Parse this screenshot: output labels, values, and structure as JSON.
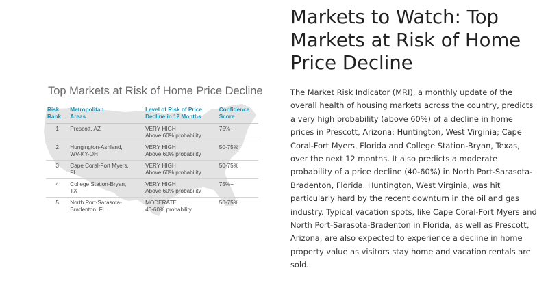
{
  "figure": {
    "title": "Top Markets at Risk of Home Price Decline",
    "headers": {
      "rank": [
        "Risk",
        "Rank"
      ],
      "metro": [
        "Metropolitan",
        "Areas"
      ],
      "level": [
        "Level of Risk of Price",
        "Decline in 12 Months"
      ],
      "confidence": [
        "Confidence",
        "Score"
      ]
    },
    "rows": [
      {
        "rank": "1",
        "metro": [
          "Prescott, AZ"
        ],
        "level": [
          "VERY HIGH",
          "Above 60% probability"
        ],
        "confidence": "75%+"
      },
      {
        "rank": "2",
        "metro": [
          "Hungington-Ashland,",
          "WV-KY-OH"
        ],
        "level": [
          "VERY HIGH",
          "Above 60% probability"
        ],
        "confidence": "50-75%"
      },
      {
        "rank": "3",
        "metro": [
          "Cape Coral-Fort Myers,",
          "FL"
        ],
        "level": [
          "VERY HIGH",
          "Above 60% probability"
        ],
        "confidence": "50-75%"
      },
      {
        "rank": "4",
        "metro": [
          "College Station-Bryan,",
          "TX"
        ],
        "level": [
          "VERY HIGH",
          "Above 60% probability"
        ],
        "confidence": "75%+"
      },
      {
        "rank": "5",
        "metro": [
          "North Port-Sarasota-",
          "Bradenton, FL"
        ],
        "level": [
          "MODERATE",
          "40-60% probability"
        ],
        "confidence": "50-75%"
      }
    ],
    "colors": {
      "header_text": "#1a8fae",
      "map_fill": "#e3e3e3"
    }
  },
  "article": {
    "title": "Markets to Watch: Top Markets at Risk of Home Price Decline",
    "body": "The Market Risk Indicator (MRI), a monthly update of the overall health of housing markets across the country, predicts a very high probability (above 60%) of a decline in home prices in Prescott, Arizona; Huntington, West Virginia; Cape Coral-Fort Myers, Florida and College Station-Bryan, Texas, over the next 12 months. It also predicts a moderate probability of a price decline (40-60%) in North Port-Sarasota-Bradenton, Florida. Huntington, West Virginia, was hit particularly hard by the recent downturn in the oil and gas industry. Typical vacation spots, like Cape Coral-Fort Myers and North Port-Sarasota-Bradenton in Florida, as well as Prescott, Arizona, are also expected to experience a decline in home property value as visitors stay home and vacation rentals are sold."
  }
}
